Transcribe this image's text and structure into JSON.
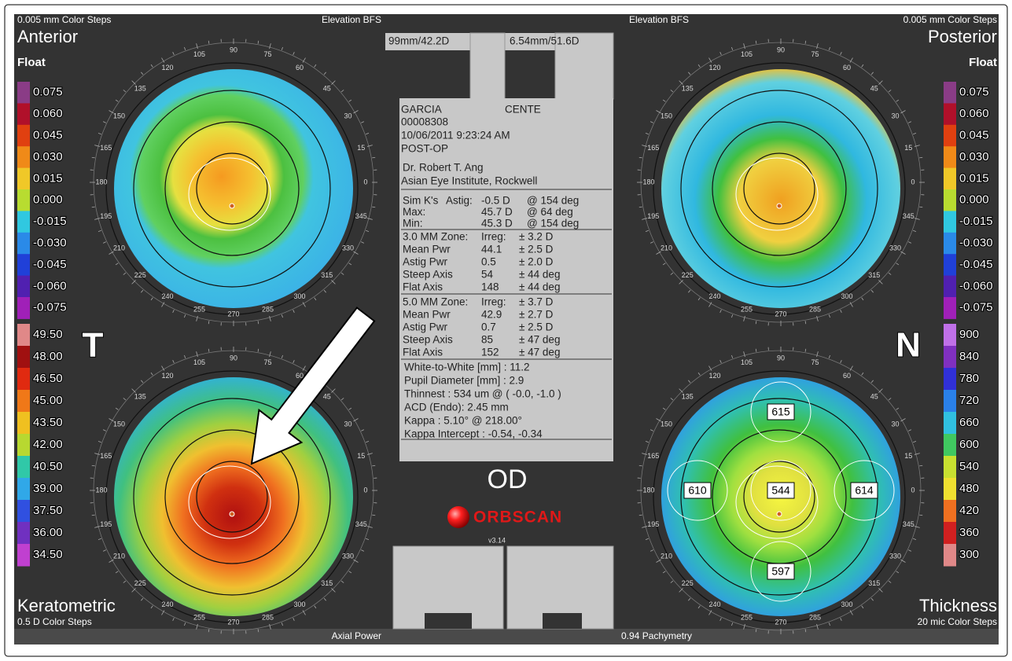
{
  "maps": [
    {
      "title": "Anterior",
      "subtitle": "Float",
      "steps": "0.005 mm Color Steps",
      "reference": "Elevation BFS"
    },
    {
      "title": "Posterior",
      "subtitle": "Float",
      "steps": "0.005 mm Color Steps",
      "reference": "Elevation BFS"
    },
    {
      "title": "Keratometric",
      "steps": "0.5 D Color Steps",
      "reference": "Axial Power"
    },
    {
      "title": "Thickness",
      "steps": "20 mic Color Steps",
      "reference": "0.94 Pachymetry"
    }
  ],
  "dial_labels": [
    0,
    15,
    30,
    45,
    60,
    75,
    90,
    105,
    120,
    135,
    150,
    165,
    180,
    195,
    210,
    225,
    240,
    255,
    270,
    285,
    300,
    315,
    330,
    345
  ],
  "scales": {
    "elevation": {
      "labels": [
        "0.075",
        "0.060",
        "0.045",
        "0.030",
        "0.015",
        "0.000",
        "-0.015",
        "-0.030",
        "-0.045",
        "-0.060",
        "-0.075"
      ],
      "colors": [
        "#8a3c86",
        "#b0102a",
        "#e04010",
        "#f08a18",
        "#f0c828",
        "#b8dc30",
        "#30c8e0",
        "#2a8ae8",
        "#2040d8",
        "#5020b0",
        "#a020b8"
      ]
    },
    "keratometric": {
      "labels": [
        "49.50",
        "48.00",
        "46.50",
        "45.00",
        "43.50",
        "42.00",
        "40.50",
        "39.00",
        "37.50",
        "36.00",
        "34.50"
      ],
      "colors": [
        "#e08888",
        "#a01010",
        "#e02a10",
        "#f07818",
        "#f0c020",
        "#b8d830",
        "#30c8a8",
        "#30a8e8",
        "#3050e0",
        "#7030c0",
        "#c040d0"
      ]
    },
    "pachymetry": {
      "labels": [
        "900",
        "840",
        "780",
        "720",
        "660",
        "600",
        "540",
        "480",
        "420",
        "360",
        "300"
      ],
      "colors": [
        "#c070e8",
        "#8030c0",
        "#3030d8",
        "#2a80e8",
        "#30c0e0",
        "#40c860",
        "#c8e030",
        "#f0e030",
        "#f07020",
        "#d02020",
        "#e08888"
      ]
    }
  },
  "side_labels": {
    "left": "T",
    "right": "N"
  },
  "pachymetry_readings": [
    615,
    610,
    544,
    614,
    597
  ],
  "eye": "OD",
  "brand": "ORBSCAN",
  "version": "v3.14",
  "panel": {
    "radius_left": "99mm/42.2D",
    "radius_right": "6.54mm/51.6D",
    "patient": "GARCIA",
    "patient_cont": "CENTE",
    "id": "00008308",
    "date": "10/06/2011 9:23:24 AM",
    "status": "POST-OP",
    "doctor": "Dr. Robert T. Ang",
    "clinic": "Asian Eye Institute, Rockwell",
    "simk": [
      {
        "head": "Sim K's",
        "label": "Astig:",
        "value": "-0.5 D",
        "detail": "@ 154 deg",
        "color": "#d020a0"
      },
      {
        "label": "Max:",
        "value": "45.7 D",
        "detail": "@ 64 deg",
        "color": "#e02020"
      },
      {
        "label": "Min:",
        "value": "45.3 D",
        "detail": "@ 154 deg",
        "color": "#2828d0"
      }
    ],
    "zones": [
      {
        "title": "3.0 MM Zone:",
        "irreg_label": "Irreg:",
        "irreg": "± 3.2 D",
        "rows": [
          {
            "label": "Mean Pwr",
            "value": "44.1",
            "range": "± 2.5 D",
            "color": "#222222"
          },
          {
            "label": "Astig Pwr",
            "value": "0.5",
            "range": "± 2.0 D",
            "color": "#222222"
          },
          {
            "label": "Steep Axis",
            "value": "54",
            "range": "± 44 deg",
            "color": "#e02020"
          },
          {
            "label": "Flat Axis",
            "value": "148",
            "range": "± 44 deg",
            "color": "#2828d0"
          }
        ]
      },
      {
        "title": "5.0 MM Zone:",
        "irreg_label": "Irreg:",
        "irreg": "± 3.7 D",
        "rows": [
          {
            "label": "Mean Pwr",
            "value": "42.9",
            "range": "± 2.7 D",
            "color": "#222222"
          },
          {
            "label": "Astig Pwr",
            "value": "0.7",
            "range": "± 2.5 D",
            "color": "#222222"
          },
          {
            "label": "Steep Axis",
            "value": "85",
            "range": "± 47 deg",
            "color": "#e02020"
          },
          {
            "label": "Flat Axis",
            "value": "152",
            "range": "± 47 deg",
            "color": "#2828d0"
          }
        ]
      }
    ],
    "extras": [
      "White-to-White [mm] : 11.2",
      "Pupil Diameter [mm] : 2.9",
      "Thinnest : 534 um @ ( -0.0, -1.0 )",
      "ACD (Endo): 2.45 mm",
      "Kappa : 5.10° @ 218.00°",
      "Kappa Intercept : -0.54, -0.34"
    ]
  }
}
